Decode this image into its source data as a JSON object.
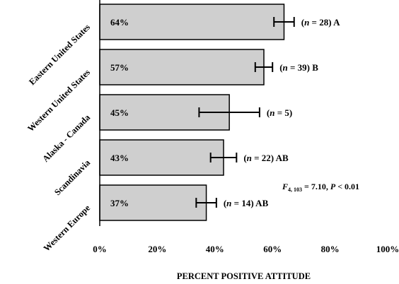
{
  "chart_data": {
    "type": "bar",
    "orientation": "horizontal",
    "categories": [
      "Eastern United States",
      "Western United States",
      "Alaska - Canada",
      "Scandinavia",
      "Western Europe"
    ],
    "values": [
      64,
      57,
      45,
      43,
      37
    ],
    "value_labels": [
      "64%",
      "57%",
      "45%",
      "43%",
      "37%"
    ],
    "error": [
      3.5,
      3,
      10.5,
      4.5,
      3.5
    ],
    "annotations": [
      {
        "n": "28",
        "group": "A"
      },
      {
        "n": "39",
        "group": "B"
      },
      {
        "n": "5",
        "group": ""
      },
      {
        "n": "22",
        "group": "AB"
      },
      {
        "n": "14",
        "group": "AB"
      }
    ],
    "xlabel": "PERCENT POSITIVE ATTITUDE",
    "xlim": [
      0,
      100
    ],
    "xticks": [
      0,
      20,
      40,
      60,
      80,
      100
    ],
    "xtick_labels": [
      "0%",
      "20%",
      "40%",
      "60%",
      "80%",
      "100%"
    ],
    "stat": {
      "prefix": "F",
      "sub": "4, 103",
      "text": " = 7.10, ",
      "p": "P",
      "rest": " < 0.01"
    },
    "colors": {
      "bar": "#cfcfcf",
      "stroke": "#000000"
    }
  }
}
